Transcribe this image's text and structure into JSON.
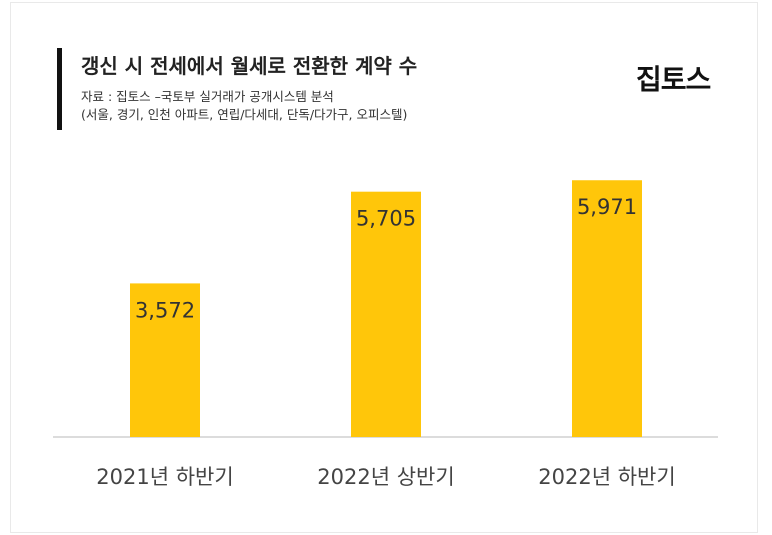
{
  "header": {
    "title": "갱신 시 전세에서 월세로 전환한 계약 수",
    "source_line1": "자료 : 집토스 –국토부 실거래가 공개시스템 분석",
    "source_line2": "(서울, 경기, 인천 아파트, 연립/다세대, 단독/다가구, 오피스텔)",
    "logo": "집토스"
  },
  "chart_data": {
    "type": "bar",
    "title": "갱신 시 전세에서 월세로 전환한 계약 수",
    "categories": [
      "2021년 하반기",
      "2022년 상반기",
      "2022년 하반기"
    ],
    "values": [
      3572,
      5705,
      5971
    ],
    "value_labels": [
      "3,572",
      "5,705",
      "5,971"
    ],
    "xlabel": "",
    "ylabel": "",
    "ylim": [
      0,
      6000
    ],
    "grid": false,
    "legend": "none",
    "bar_color": "#FFC60A",
    "axis_color": "#D0D0D0"
  }
}
